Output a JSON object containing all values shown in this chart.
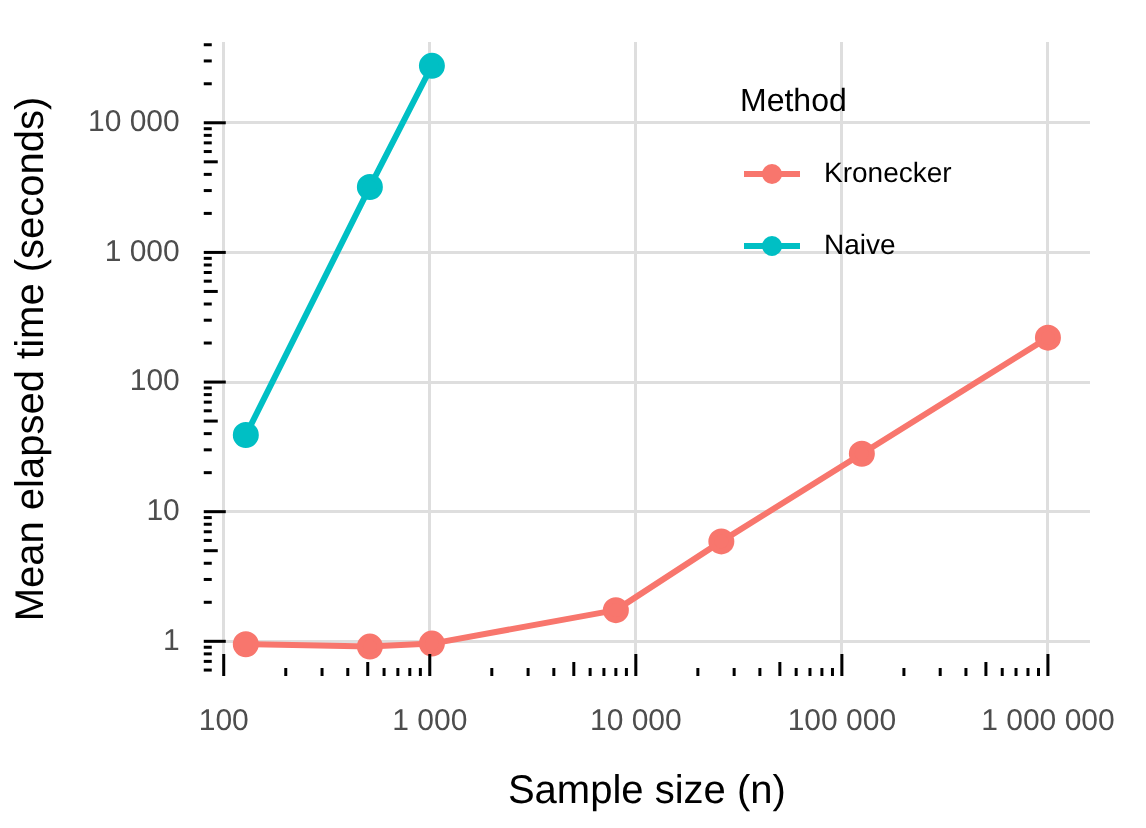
{
  "chart_data": {
    "type": "line",
    "xlabel": "Sample size (n)",
    "ylabel": "Mean elapsed time (seconds)",
    "legend_title": "Method",
    "legend": "top right",
    "log": "xy",
    "grid": true,
    "marker": "circle",
    "line_style": "solid",
    "xlim": [
      80,
      1600000
    ],
    "ylim": [
      0.54,
      42000
    ],
    "xticks": [
      100,
      {
        "value": 200,
        "label": null
      },
      {
        "value": 300,
        "label": null
      },
      {
        "value": 400,
        "label": null
      },
      {
        "value": 500,
        "label": null
      },
      {
        "value": 600,
        "label": null
      },
      {
        "value": 700,
        "label": null
      },
      {
        "value": 800,
        "label": null
      },
      {
        "value": 900,
        "label": null
      },
      {
        "value": 1000,
        "label": "1 000"
      },
      {
        "value": 2000,
        "label": null
      },
      {
        "value": 3000,
        "label": null
      },
      {
        "value": 4000,
        "label": null
      },
      {
        "value": 5000,
        "label": null
      },
      {
        "value": 6000,
        "label": null
      },
      {
        "value": 7000,
        "label": null
      },
      {
        "value": 8000,
        "label": null
      },
      {
        "value": 9000,
        "label": null
      },
      {
        "value": 10000,
        "label": "10 000"
      },
      {
        "value": 20000,
        "label": null
      },
      {
        "value": 30000,
        "label": null
      },
      {
        "value": 40000,
        "label": null
      },
      {
        "value": 50000,
        "label": null
      },
      {
        "value": 60000,
        "label": null
      },
      {
        "value": 70000,
        "label": null
      },
      {
        "value": 80000,
        "label": null
      },
      {
        "value": 90000,
        "label": null
      },
      {
        "value": 100000,
        "label": "100 000"
      },
      {
        "value": 200000,
        "label": null
      },
      {
        "value": 300000,
        "label": null
      },
      {
        "value": 400000,
        "label": null
      },
      {
        "value": 500000,
        "label": null
      },
      {
        "value": 600000,
        "label": null
      },
      {
        "value": 700000,
        "label": null
      },
      {
        "value": 800000,
        "label": null
      },
      {
        "value": 900000,
        "label": null
      },
      {
        "value": 1000000,
        "label": "1 000 000"
      }
    ],
    "yticks": [
      {
        "value": 0.6,
        "label": null
      },
      {
        "value": 0.7,
        "label": null
      },
      {
        "value": 0.8,
        "label": null
      },
      {
        "value": 0.9,
        "label": null
      },
      1,
      {
        "value": 2,
        "label": null
      },
      {
        "value": 3,
        "label": null
      },
      {
        "value": 4,
        "label": null
      },
      {
        "value": 5,
        "label": null
      },
      {
        "value": 6,
        "label": null
      },
      {
        "value": 7,
        "label": null
      },
      {
        "value": 8,
        "label": null
      },
      {
        "value": 9,
        "label": null
      },
      10,
      {
        "value": 20,
        "label": null
      },
      {
        "value": 30,
        "label": null
      },
      {
        "value": 40,
        "label": null
      },
      {
        "value": 50,
        "label": null
      },
      {
        "value": 60,
        "label": null
      },
      {
        "value": 70,
        "label": null
      },
      {
        "value": 80,
        "label": null
      },
      {
        "value": 90,
        "label": null
      },
      100,
      {
        "value": 200,
        "label": null
      },
      {
        "value": 300,
        "label": null
      },
      {
        "value": 400,
        "label": null
      },
      {
        "value": 500,
        "label": null
      },
      {
        "value": 600,
        "label": null
      },
      {
        "value": 700,
        "label": null
      },
      {
        "value": 800,
        "label": null
      },
      {
        "value": 900,
        "label": null
      },
      {
        "value": 1000,
        "label": "1 000"
      },
      {
        "value": 2000,
        "label": null
      },
      {
        "value": 3000,
        "label": null
      },
      {
        "value": 4000,
        "label": null
      },
      {
        "value": 5000,
        "label": null
      },
      {
        "value": 6000,
        "label": null
      },
      {
        "value": 7000,
        "label": null
      },
      {
        "value": 8000,
        "label": null
      },
      {
        "value": 9000,
        "label": null
      },
      {
        "value": 10000,
        "label": "10 000"
      },
      {
        "value": 20000,
        "label": null
      },
      {
        "value": 30000,
        "label": null
      },
      {
        "value": 40000,
        "label": null
      }
    ],
    "series": [
      {
        "name": "Kronecker",
        "color": "#f8766d",
        "x": [
          128,
          512,
          1024,
          8000,
          26000,
          125000,
          1000000
        ],
        "values": [
          0.95,
          0.91,
          0.96,
          1.74,
          5.9,
          28,
          220
        ]
      },
      {
        "name": "Naive",
        "color": "#00bfc4",
        "x": [
          128,
          512,
          1024
        ],
        "values": [
          39,
          3200,
          27500
        ]
      }
    ]
  }
}
